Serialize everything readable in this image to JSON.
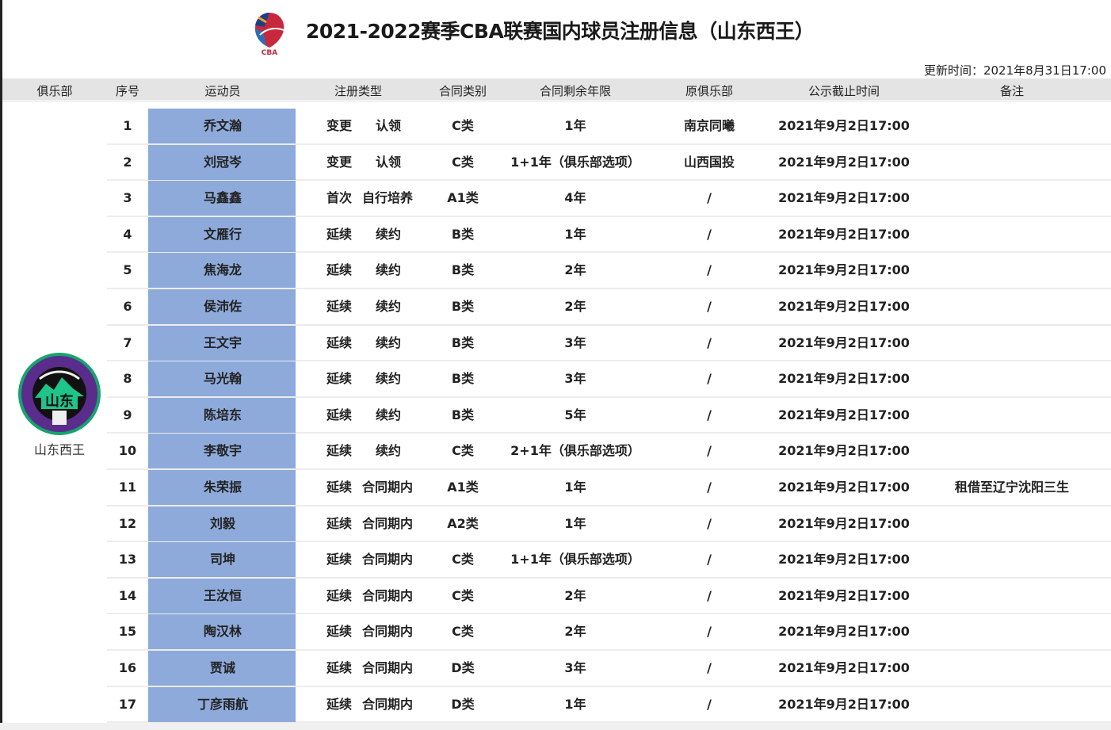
{
  "title": "2021-2022赛季CBA联赛国内球员注册信息（山东西王）",
  "logo_text": "CBA",
  "update_time": "更新时间：2021年8月31日17:00",
  "columns": [
    "俱乐部",
    "序号",
    "运动员",
    "注册类型",
    "合同类别",
    "合同剩余年限",
    "原俱乐部",
    "公示截止时间",
    "备注"
  ],
  "club": {
    "name": "山东西王",
    "logo_text": "SHANDONG HEROES 山东 高"
  },
  "colors": {
    "name_cell": "#8eaadb",
    "header_bg": "#e4e4e4"
  },
  "rows": [
    {
      "no": "1",
      "player": "乔文瀚",
      "reg1": "变更",
      "reg2": "认领",
      "type": "C类",
      "years": "1年",
      "prev": "南京同曦",
      "deadline": "2021年9月2日17:00",
      "note": ""
    },
    {
      "no": "2",
      "player": "刘冠岑",
      "reg1": "变更",
      "reg2": "认领",
      "type": "C类",
      "years": "1+1年（俱乐部选项）",
      "prev": "山西国投",
      "deadline": "2021年9月2日17:00",
      "note": ""
    },
    {
      "no": "3",
      "player": "马鑫鑫",
      "reg1": "首次",
      "reg2": "自行培养",
      "type": "A1类",
      "years": "4年",
      "prev": "/",
      "deadline": "2021年9月2日17:00",
      "note": ""
    },
    {
      "no": "4",
      "player": "文雁行",
      "reg1": "延续",
      "reg2": "续约",
      "type": "B类",
      "years": "1年",
      "prev": "/",
      "deadline": "2021年9月2日17:00",
      "note": ""
    },
    {
      "no": "5",
      "player": "焦海龙",
      "reg1": "延续",
      "reg2": "续约",
      "type": "B类",
      "years": "2年",
      "prev": "/",
      "deadline": "2021年9月2日17:00",
      "note": ""
    },
    {
      "no": "6",
      "player": "侯沛佐",
      "reg1": "延续",
      "reg2": "续约",
      "type": "B类",
      "years": "2年",
      "prev": "/",
      "deadline": "2021年9月2日17:00",
      "note": ""
    },
    {
      "no": "7",
      "player": "王文宇",
      "reg1": "延续",
      "reg2": "续约",
      "type": "B类",
      "years": "3年",
      "prev": "/",
      "deadline": "2021年9月2日17:00",
      "note": ""
    },
    {
      "no": "8",
      "player": "马光翰",
      "reg1": "延续",
      "reg2": "续约",
      "type": "B类",
      "years": "3年",
      "prev": "/",
      "deadline": "2021年9月2日17:00",
      "note": ""
    },
    {
      "no": "9",
      "player": "陈培东",
      "reg1": "延续",
      "reg2": "续约",
      "type": "B类",
      "years": "5年",
      "prev": "/",
      "deadline": "2021年9月2日17:00",
      "note": ""
    },
    {
      "no": "10",
      "player": "李敬宇",
      "reg1": "延续",
      "reg2": "续约",
      "type": "C类",
      "years": "2+1年（俱乐部选项）",
      "prev": "/",
      "deadline": "2021年9月2日17:00",
      "note": ""
    },
    {
      "no": "11",
      "player": "朱荣振",
      "reg1": "延续",
      "reg2": "合同期内",
      "type": "A1类",
      "years": "1年",
      "prev": "/",
      "deadline": "2021年9月2日17:00",
      "note": "租借至辽宁沈阳三生"
    },
    {
      "no": "12",
      "player": "刘毅",
      "reg1": "延续",
      "reg2": "合同期内",
      "type": "A2类",
      "years": "1年",
      "prev": "/",
      "deadline": "2021年9月2日17:00",
      "note": ""
    },
    {
      "no": "13",
      "player": "司坤",
      "reg1": "延续",
      "reg2": "合同期内",
      "type": "C类",
      "years": "1+1年（俱乐部选项）",
      "prev": "/",
      "deadline": "2021年9月2日17:00",
      "note": ""
    },
    {
      "no": "14",
      "player": "王汝恒",
      "reg1": "延续",
      "reg2": "合同期内",
      "type": "C类",
      "years": "2年",
      "prev": "/",
      "deadline": "2021年9月2日17:00",
      "note": ""
    },
    {
      "no": "15",
      "player": "陶汉林",
      "reg1": "延续",
      "reg2": "合同期内",
      "type": "C类",
      "years": "2年",
      "prev": "/",
      "deadline": "2021年9月2日17:00",
      "note": ""
    },
    {
      "no": "16",
      "player": "贾诚",
      "reg1": "延续",
      "reg2": "合同期内",
      "type": "D类",
      "years": "3年",
      "prev": "/",
      "deadline": "2021年9月2日17:00",
      "note": ""
    },
    {
      "no": "17",
      "player": "丁彦雨航",
      "reg1": "延续",
      "reg2": "合同期内",
      "type": "D类",
      "years": "1年",
      "prev": "/",
      "deadline": "2021年9月2日17:00",
      "note": ""
    }
  ]
}
